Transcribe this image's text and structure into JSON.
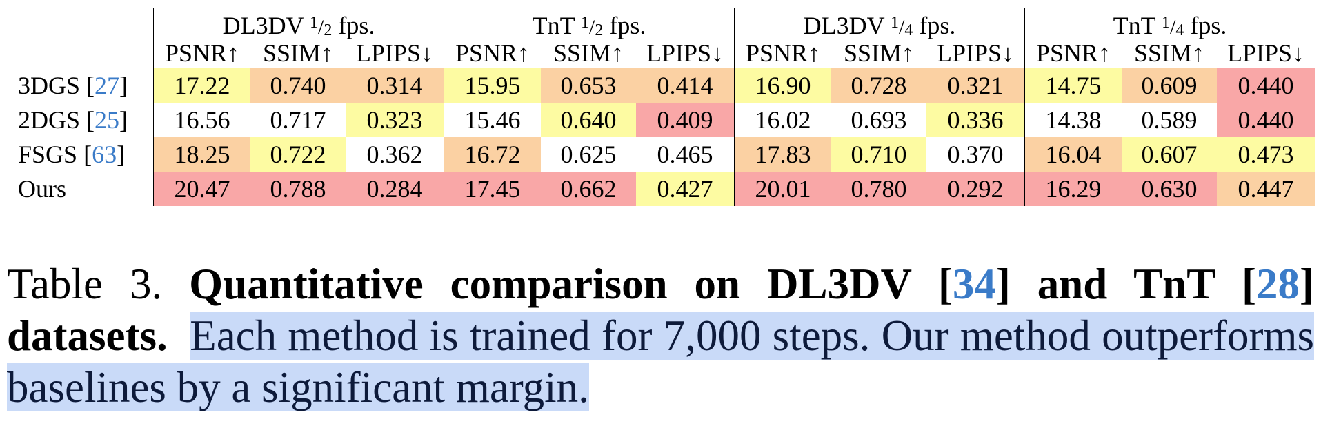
{
  "table": {
    "groups": [
      {
        "name": "DL3DV",
        "fraction": {
          "num": "1",
          "den": "2"
        },
        "suffix": "fps."
      },
      {
        "name": "TnT",
        "fraction": {
          "num": "1",
          "den": "2"
        },
        "suffix": "fps."
      },
      {
        "name": "DL3DV",
        "fraction": {
          "num": "1",
          "den": "4"
        },
        "suffix": "fps."
      },
      {
        "name": "TnT",
        "fraction": {
          "num": "1",
          "den": "4"
        },
        "suffix": "fps."
      }
    ],
    "metrics": [
      "PSNR↑",
      "SSIM↑",
      "LPIPS↓"
    ],
    "rows": [
      {
        "method": "3DGS",
        "cite": "27",
        "values": [
          "17.22",
          "0.740",
          "0.314",
          "15.95",
          "0.653",
          "0.414",
          "16.90",
          "0.728",
          "0.321",
          "14.75",
          "0.609",
          "0.440"
        ]
      },
      {
        "method": "2DGS",
        "cite": "25",
        "values": [
          "16.56",
          "0.717",
          "0.323",
          "15.46",
          "0.640",
          "0.409",
          "16.02",
          "0.693",
          "0.336",
          "14.38",
          "0.589",
          "0.440"
        ]
      },
      {
        "method": "FSGS",
        "cite": "63",
        "values": [
          "18.25",
          "0.722",
          "0.362",
          "16.72",
          "0.625",
          "0.465",
          "17.83",
          "0.710",
          "0.370",
          "16.04",
          "0.607",
          "0.473"
        ]
      },
      {
        "method": "Ours",
        "cite": null,
        "values": [
          "20.47",
          "0.788",
          "0.284",
          "17.45",
          "0.662",
          "0.427",
          "20.01",
          "0.780",
          "0.292",
          "16.29",
          "0.630",
          "0.447"
        ]
      }
    ],
    "rank_colors": {
      "first": "#f9a7a7",
      "second": "#fbd1a3",
      "third": "#fdfba2"
    },
    "ranks": [
      [
        3,
        2,
        2,
        3,
        2,
        2,
        3,
        2,
        2,
        3,
        2,
        1
      ],
      [
        0,
        0,
        3,
        0,
        3,
        1,
        0,
        0,
        3,
        0,
        0,
        1
      ],
      [
        2,
        3,
        0,
        2,
        0,
        0,
        2,
        3,
        0,
        2,
        3,
        3
      ],
      [
        1,
        1,
        1,
        1,
        1,
        3,
        1,
        1,
        1,
        1,
        1,
        2
      ]
    ]
  },
  "caption": {
    "label": "Table 3.",
    "bold_1": "Quantitative comparison on DL3DV [",
    "cite_1": "34",
    "bold_2": "] and TnT [",
    "cite_2": "28",
    "bold_3": "]",
    "bold_4": "datasets.",
    "highlighted": "Each method is trained for 7,000 steps.  Our method outperforms baselines by a significant margin."
  }
}
